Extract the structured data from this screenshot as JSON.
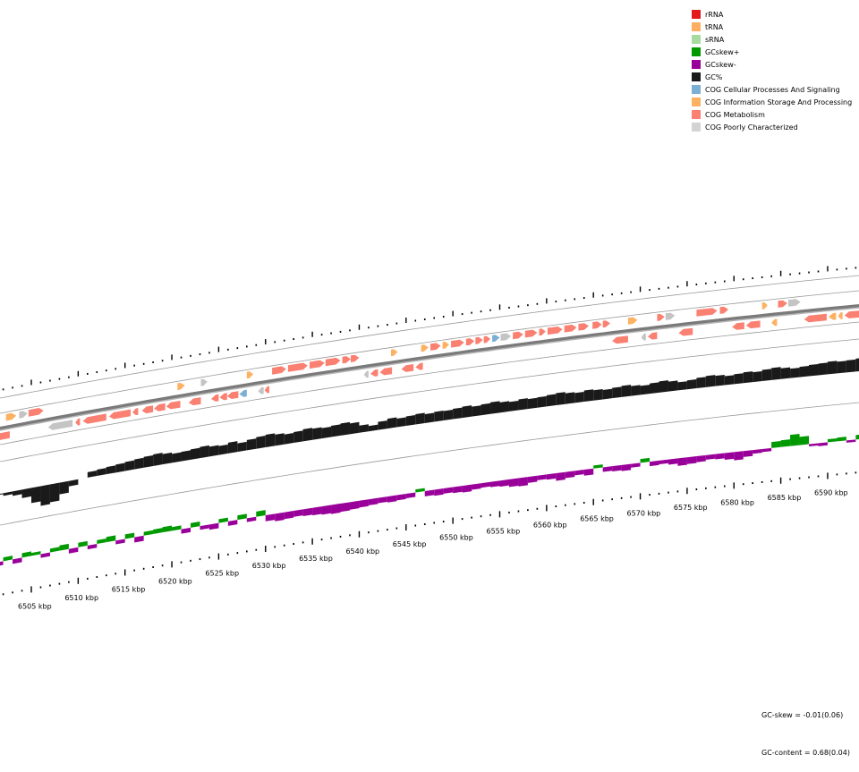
{
  "legend": [
    {
      "label": "rRNA",
      "color": "#e31a1c"
    },
    {
      "label": "tRNA",
      "color": "#fdae61"
    },
    {
      "label": "sRNA",
      "color": "#a6dba0"
    },
    {
      "label": "GCskew+",
      "color": "#009900"
    },
    {
      "label": "GCskew-",
      "color": "#990099"
    },
    {
      "label": "GC%",
      "color": "#1a1a1a"
    },
    {
      "label": "COG Cellular Processes And Signaling",
      "color": "#7bafd4"
    },
    {
      "label": "COG Information Storage And Processing",
      "color": "#fdb163"
    },
    {
      "label": "COG Metabolism",
      "color": "#fa8072"
    },
    {
      "label": "COG Poorly Characterized",
      "color": "#d3d3d3"
    }
  ],
  "category_colors": {
    "cell": "#7bafd4",
    "info": "#fdb163",
    "met": "#fa8072",
    "poor": "#c4c4c4"
  },
  "axis": {
    "start_kbp": 6501,
    "end_kbp": 6594,
    "unit": "kbp",
    "labels": [
      "6505 kbp",
      "6510 kbp",
      "6515 kbp",
      "6520 kbp",
      "6525 kbp",
      "6530 kbp",
      "6535 kbp",
      "6540 kbp",
      "6545 kbp",
      "6550 kbp",
      "6555 kbp",
      "6560 kbp",
      "6565 kbp",
      "6570 kbp",
      "6575 kbp",
      "6580 kbp",
      "6585 kbp",
      "6590 kbp"
    ]
  },
  "features": [
    [
      6502.3,
      6503.4,
      1,
      "info"
    ],
    [
      6503.7,
      6504.6,
      1,
      "poor"
    ],
    [
      6504.7,
      6506.3,
      1,
      "met"
    ],
    [
      6520.6,
      6521.4,
      1,
      "info"
    ],
    [
      6523.1,
      6523.8,
      1,
      "poor"
    ],
    [
      6528.0,
      6528.7,
      1,
      "info"
    ],
    [
      6530.7,
      6532.2,
      1,
      "met"
    ],
    [
      6532.4,
      6534.5,
      1,
      "met"
    ],
    [
      6534.7,
      6536.3,
      1,
      "met"
    ],
    [
      6536.4,
      6538.0,
      1,
      "met"
    ],
    [
      6538.2,
      6539.1,
      1,
      "met"
    ],
    [
      6539.1,
      6540.0,
      1,
      "met"
    ],
    [
      6543.4,
      6544.1,
      1,
      "info"
    ],
    [
      6546.6,
      6547.4,
      1,
      "info"
    ],
    [
      6547.6,
      6548.7,
      1,
      "met"
    ],
    [
      6548.9,
      6549.6,
      1,
      "info"
    ],
    [
      6549.8,
      6551.2,
      1,
      "met"
    ],
    [
      6551.4,
      6552.3,
      1,
      "met"
    ],
    [
      6552.4,
      6553.2,
      1,
      "met"
    ],
    [
      6553.3,
      6554.0,
      1,
      "met"
    ],
    [
      6554.2,
      6555.0,
      1,
      "cell"
    ],
    [
      6555.1,
      6556.2,
      1,
      "poor"
    ],
    [
      6556.4,
      6557.5,
      1,
      "met"
    ],
    [
      6557.7,
      6559.0,
      1,
      "met"
    ],
    [
      6559.2,
      6559.9,
      1,
      "met"
    ],
    [
      6560.1,
      6561.7,
      1,
      "met"
    ],
    [
      6561.9,
      6563.2,
      1,
      "met"
    ],
    [
      6563.4,
      6564.5,
      1,
      "met"
    ],
    [
      6564.9,
      6565.9,
      1,
      "met"
    ],
    [
      6566.0,
      6566.8,
      1,
      "met"
    ],
    [
      6568.7,
      6569.7,
      1,
      "info"
    ],
    [
      6571.8,
      6572.6,
      1,
      "met"
    ],
    [
      6572.7,
      6573.7,
      1,
      "poor"
    ],
    [
      6576.0,
      6578.2,
      1,
      "met"
    ],
    [
      6578.5,
      6579.4,
      1,
      "met"
    ],
    [
      6583.0,
      6583.6,
      1,
      "info"
    ],
    [
      6584.7,
      6585.7,
      1,
      "met"
    ],
    [
      6585.8,
      6587.1,
      1,
      "poor"
    ],
    [
      6501.0,
      6502.7,
      -1,
      "met"
    ],
    [
      6506.8,
      6509.4,
      -1,
      "poor"
    ],
    [
      6509.7,
      6510.2,
      -1,
      "met"
    ],
    [
      6510.5,
      6513.0,
      -1,
      "met"
    ],
    [
      6513.3,
      6515.6,
      -1,
      "met"
    ],
    [
      6515.8,
      6516.4,
      -1,
      "met"
    ],
    [
      6516.8,
      6518.0,
      -1,
      "met"
    ],
    [
      6518.1,
      6519.3,
      -1,
      "met"
    ],
    [
      6519.4,
      6520.9,
      -1,
      "met"
    ],
    [
      6521.8,
      6523.1,
      -1,
      "met"
    ],
    [
      6524.2,
      6525.0,
      -1,
      "met"
    ],
    [
      6525.1,
      6525.9,
      -1,
      "met"
    ],
    [
      6525.9,
      6527.1,
      -1,
      "met"
    ],
    [
      6527.2,
      6528.0,
      -1,
      "cell"
    ],
    [
      6529.2,
      6529.8,
      -1,
      "poor"
    ],
    [
      6529.9,
      6530.4,
      -1,
      "met"
    ],
    [
      6540.5,
      6541.0,
      -1,
      "poor"
    ],
    [
      6541.2,
      6542.0,
      -1,
      "met"
    ],
    [
      6542.2,
      6543.5,
      -1,
      "met"
    ],
    [
      6544.5,
      6545.8,
      -1,
      "met"
    ],
    [
      6546.0,
      6546.8,
      -1,
      "met"
    ],
    [
      6567.0,
      6568.7,
      -1,
      "met"
    ],
    [
      6570.1,
      6570.6,
      -1,
      "poor"
    ],
    [
      6570.8,
      6571.8,
      -1,
      "met"
    ],
    [
      6574.1,
      6575.6,
      -1,
      "met"
    ],
    [
      6579.8,
      6581.1,
      -1,
      "met"
    ],
    [
      6581.3,
      6582.8,
      -1,
      "met"
    ],
    [
      6584.0,
      6584.6,
      -1,
      "info"
    ],
    [
      6587.5,
      6589.9,
      -1,
      "met"
    ],
    [
      6590.1,
      6590.9,
      -1,
      "info"
    ],
    [
      6591.1,
      6591.6,
      -1,
      "info"
    ],
    [
      6591.8,
      6593.5,
      -1,
      "met"
    ]
  ],
  "gc_mean": 0.68,
  "gc_percent": [
    0.672,
    0.668,
    0.664,
    0.655,
    0.64,
    0.63,
    0.634,
    0.648,
    0.662,
    0.676,
    0.684,
    0.688,
    0.69,
    0.692,
    0.694,
    0.696,
    0.698,
    0.7,
    0.697,
    0.694,
    0.695,
    0.697,
    0.699,
    0.696,
    0.694,
    0.698,
    0.693,
    0.697,
    0.7,
    0.702,
    0.699,
    0.696,
    0.698,
    0.701,
    0.699,
    0.697,
    0.699,
    0.701,
    0.698,
    0.69,
    0.684,
    0.692,
    0.696,
    0.693,
    0.695,
    0.697,
    0.694,
    0.696,
    0.695,
    0.697,
    0.699,
    0.696,
    0.698,
    0.7,
    0.697,
    0.695,
    0.698,
    0.696,
    0.697,
    0.699,
    0.701,
    0.698,
    0.696,
    0.699,
    0.697,
    0.695,
    0.697,
    0.699,
    0.696,
    0.694,
    0.697,
    0.699,
    0.696,
    0.692,
    0.694,
    0.697,
    0.699,
    0.697,
    0.694,
    0.696,
    0.698,
    0.696,
    0.699,
    0.701,
    0.698,
    0.695,
    0.697,
    0.699,
    0.7,
    0.702,
    0.7,
    0.701,
    0.703
  ],
  "gc_skew": [
    -0.01,
    0.01,
    -0.012,
    0.012,
    0.008,
    -0.01,
    0.01,
    0.014,
    -0.012,
    0.012,
    -0.01,
    0.01,
    0.014,
    -0.01,
    0.012,
    -0.014,
    0.01,
    0.012,
    0.014,
    0.01,
    -0.012,
    0.012,
    -0.01,
    -0.014,
    0.01,
    -0.012,
    0.012,
    -0.01,
    0.014,
    -0.016,
    -0.02,
    -0.018,
    -0.016,
    -0.018,
    -0.02,
    -0.022,
    -0.024,
    -0.022,
    -0.02,
    -0.018,
    -0.016,
    -0.014,
    -0.016,
    -0.014,
    -0.012,
    0.008,
    -0.014,
    -0.016,
    -0.014,
    -0.016,
    -0.018,
    -0.014,
    -0.012,
    -0.014,
    -0.016,
    -0.02,
    -0.022,
    -0.016,
    -0.012,
    -0.014,
    -0.02,
    -0.016,
    -0.012,
    -0.016,
    0.008,
    -0.012,
    -0.014,
    -0.016,
    -0.01,
    0.01,
    -0.012,
    -0.01,
    -0.014,
    -0.02,
    -0.018,
    -0.016,
    -0.012,
    -0.014,
    -0.018,
    -0.022,
    -0.016,
    -0.01,
    -0.008,
    0.016,
    0.018,
    0.03,
    0.022,
    -0.006,
    -0.008,
    0.008,
    0.01,
    -0.006,
    0.012
  ],
  "stats": {
    "gc_skew": "GC-skew = -0.01(0.06)",
    "gc_content": "GC-content = 0.68(0.04)"
  }
}
